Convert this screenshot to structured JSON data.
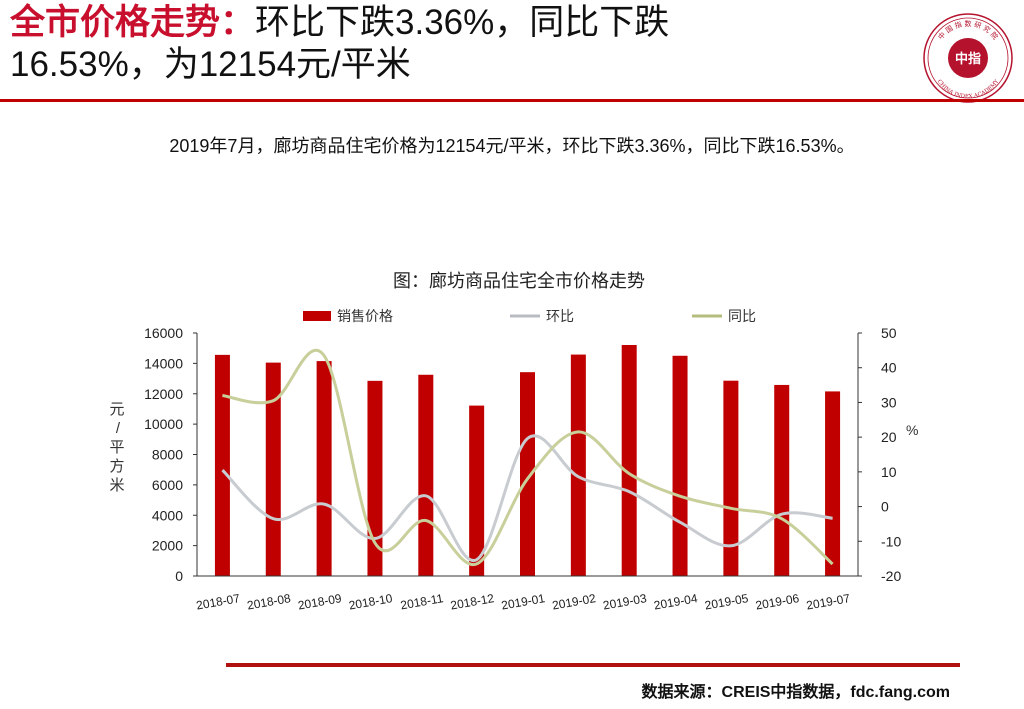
{
  "header": {
    "title_red": "全市价格走势：",
    "title_rest_line1": "环比下跌3.36%，同比下跌",
    "title_line2": "16.53%，为12154元/平米"
  },
  "summary": "2019年7月，廊坊商品住宅价格为12154元/平米，环比下跌3.36%，同比下跌16.53%。",
  "logo": {
    "center_text": "中指",
    "arc_text": "中 国 指 数 研 究 院",
    "en_text": "CHINA INDEX ACADEMY",
    "color": "#b5122e"
  },
  "chart_data": {
    "type": "bar+line",
    "title": "图：廊坊商品住宅全市价格走势",
    "categories": [
      "2018-07",
      "2018-08",
      "2018-09",
      "2018-10",
      "2018-11",
      "2018-12",
      "2019-01",
      "2019-02",
      "2019-03",
      "2019-04",
      "2019-05",
      "2019-06",
      "2019-07"
    ],
    "series": [
      {
        "name": "销售价格",
        "type": "bar",
        "axis": "left",
        "color": "#c00000",
        "values": [
          14560,
          14050,
          14150,
          12850,
          13250,
          11220,
          13420,
          14580,
          15210,
          14500,
          12860,
          12580,
          12154
        ]
      },
      {
        "name": "环比",
        "type": "line",
        "axis": "right",
        "color": "#c8ccd0",
        "values": [
          10.5,
          -3.5,
          0.7,
          -9.2,
          3.1,
          -15.3,
          19.6,
          8.6,
          4.3,
          -4.5,
          -11.3,
          -2.2,
          -3.36
        ]
      },
      {
        "name": "同比",
        "type": "line",
        "axis": "right",
        "color": "#c8cf9a",
        "values": [
          32,
          30.5,
          43.5,
          -10.5,
          -4,
          -16.5,
          8,
          21.5,
          9.5,
          3,
          -0.5,
          -3.5,
          -16.53
        ]
      }
    ],
    "y_left": {
      "label": "元/平方米",
      "min": 0,
      "max": 16000,
      "ticks": [
        0,
        2000,
        4000,
        6000,
        8000,
        10000,
        12000,
        14000,
        16000
      ]
    },
    "y_right": {
      "label": "%",
      "min": -20,
      "max": 50,
      "ticks": [
        -20,
        -10,
        0,
        10,
        20,
        30,
        40,
        50
      ]
    },
    "legend": "top",
    "grid": false
  },
  "source": "数据来源：CREIS中指数据，fdc.fang.com"
}
